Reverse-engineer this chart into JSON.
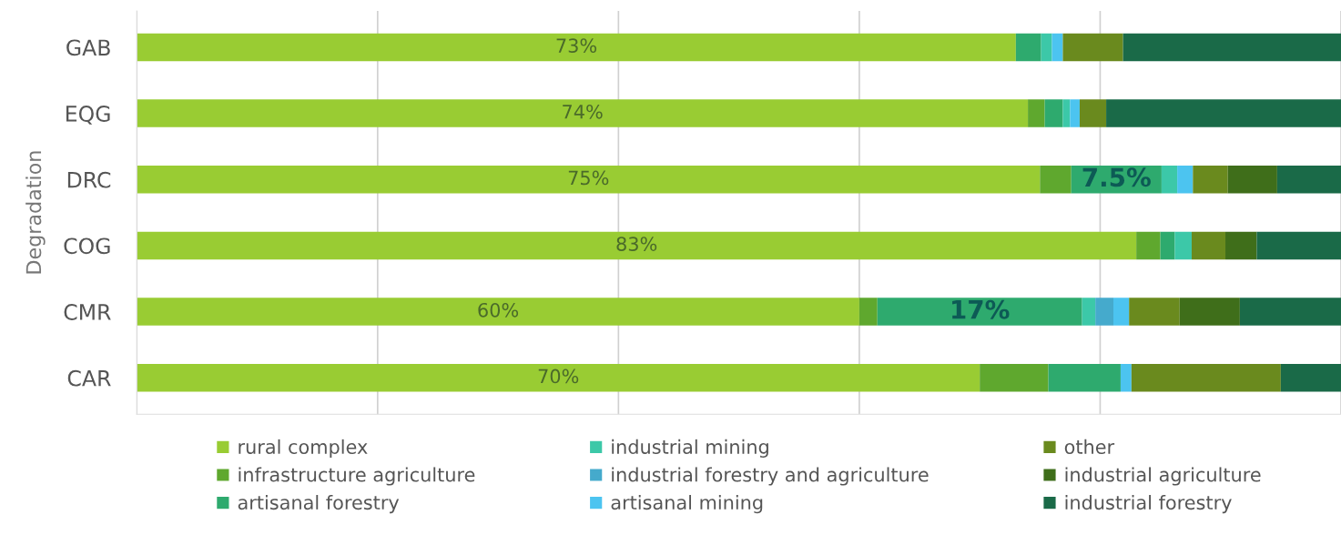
{
  "chart_data": {
    "type": "bar",
    "orientation": "horizontal",
    "stacked": true,
    "ylabel": "Degradation",
    "categories": [
      "GAB",
      "EQG",
      "DRC",
      "COG",
      "CMR",
      "CAR"
    ],
    "series": [
      {
        "name": "rural complex",
        "color": "#99cc33",
        "values": [
          73,
          74,
          75,
          83,
          60,
          70
        ],
        "value_labels": [
          "73%",
          "74%",
          "75%",
          "83%",
          "60%",
          "70%"
        ]
      },
      {
        "name": "infrastructure agriculture",
        "color": "#5fa82e",
        "values": [
          0,
          1.4,
          2.6,
          2.0,
          1.5,
          5.7
        ]
      },
      {
        "name": "artisanal forestry",
        "color": "#2eaa6e",
        "values": [
          2.1,
          1.5,
          7.5,
          1.2,
          17,
          6.0
        ],
        "value_labels": [
          null,
          null,
          "7.5%",
          null,
          "17%",
          null
        ]
      },
      {
        "name": "industrial mining",
        "color": "#3cc8a8",
        "values": [
          0.9,
          0.6,
          1.3,
          1.4,
          1.1,
          0
        ]
      },
      {
        "name": "industrial forestry and agriculture",
        "color": "#45aacc",
        "values": [
          0,
          0,
          0,
          0,
          1.5,
          0
        ]
      },
      {
        "name": "artisanal mining",
        "color": "#4cc4f0",
        "values": [
          0.9,
          0.8,
          1.3,
          0,
          1.3,
          0.9
        ]
      },
      {
        "name": "other",
        "color": "#6a8a1e",
        "values": [
          5.0,
          2.2,
          2.9,
          2.8,
          4.2,
          12.4
        ]
      },
      {
        "name": "industrial agriculture",
        "color": "#3f6e1a",
        "values": [
          0,
          0,
          4.1,
          2.6,
          5.0,
          0
        ]
      },
      {
        "name": "industrial forestry",
        "color": "#1a6a48",
        "values": [
          18.1,
          19.5,
          5.3,
          7.0,
          8.4,
          5.0
        ]
      }
    ],
    "xlim": [
      0,
      100
    ],
    "xticks": [
      {
        "value": 0,
        "label": null
      },
      {
        "value": 20,
        "label": null
      },
      {
        "value": 40,
        "label": null
      },
      {
        "value": 60,
        "label": null
      },
      {
        "value": 80,
        "label": null
      },
      {
        "value": 100,
        "label": null
      }
    ],
    "tick_labels": "y",
    "grid": "x",
    "legend": "bottom"
  }
}
